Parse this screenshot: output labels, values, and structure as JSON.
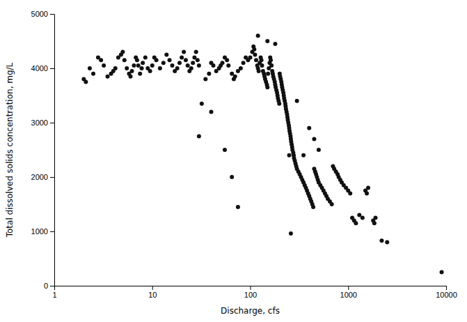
{
  "chart_data": {
    "type": "scatter",
    "xlabel": "Discharge, cfs",
    "ylabel": "Total dissolved solids concentration, mg/L",
    "log": "x",
    "xlim": [
      1,
      10000
    ],
    "xticks": [
      1,
      10,
      100,
      1000,
      10000
    ],
    "ylim": [
      0,
      5000
    ],
    "yticks": [
      0,
      1000,
      2000,
      3000,
      4000,
      5000
    ],
    "grid": false,
    "color": "#111111",
    "x": [
      2.0,
      2.1,
      2.3,
      2.5,
      2.8,
      3.0,
      3.2,
      3.5,
      3.8,
      4.0,
      4.2,
      4.5,
      4.8,
      5.0,
      5.2,
      5.5,
      5.8,
      6.0,
      6.2,
      6.5,
      6.8,
      7.0,
      7.2,
      7.5,
      7.8,
      8.0,
      8.5,
      9.0,
      9.5,
      10.0,
      10.5,
      11.0,
      12.0,
      13.0,
      14.0,
      15.0,
      16.0,
      17.0,
      18.0,
      19.0,
      20.0,
      21.0,
      22.0,
      23.0,
      24.0,
      25.0,
      26.0,
      27.0,
      28.0,
      29.0,
      30.0,
      32.0,
      35.0,
      38.0,
      40.0,
      42.0,
      45.0,
      48.0,
      50.0,
      52.0,
      55.0,
      58.0,
      60.0,
      65.0,
      68.0,
      70.0,
      75.0,
      80.0,
      85.0,
      90.0,
      95.0,
      100.0,
      105.0,
      108.0,
      110.0,
      112.0,
      115.0,
      118.0,
      120.0,
      122.0,
      125.0,
      128.0,
      130.0,
      132.0,
      135.0,
      138.0,
      140.0,
      142.0,
      145.0,
      148.0,
      150.0,
      152.0,
      155.0,
      158.0,
      160.0,
      162.0,
      165.0,
      168.0,
      170.0,
      172.0,
      175.0,
      178.0,
      180.0,
      182.0,
      185.0,
      188.0,
      190.0,
      192.0,
      195.0,
      198.0,
      200.0,
      202.0,
      205.0,
      208.0,
      210.0,
      212.0,
      215.0,
      218.0,
      220.0,
      222.0,
      225.0,
      228.0,
      230.0,
      232.0,
      235.0,
      238.0,
      240.0,
      242.0,
      245.0,
      248.0,
      250.0,
      252.0,
      255.0,
      258.0,
      260.0,
      262.0,
      265.0,
      268.0,
      270.0,
      275.0,
      278.0,
      280.0,
      285.0,
      290.0,
      295.0,
      300.0,
      310.0,
      320.0,
      330.0,
      340.0,
      350.0,
      360.0,
      370.0,
      380.0,
      390.0,
      400.0,
      410.0,
      420.0,
      430.0,
      440.0,
      450.0,
      460.0,
      470.0,
      480.0,
      490.0,
      500.0,
      520.0,
      540.0,
      560.0,
      580.0,
      600.0,
      620.0,
      650.0,
      680.0,
      700.0,
      720.0,
      750.0,
      780.0,
      800.0,
      830.0,
      860.0,
      900.0,
      950.0,
      1000.0,
      1050.0,
      1100.0,
      1150.0,
      1200.0,
      1300.0,
      1400.0,
      1500.0,
      1550.0,
      1600.0,
      1800.0,
      1850.0,
      1900.0,
      2200.0,
      2500.0,
      9000.0,
      30.0,
      40.0,
      55.0,
      65.0,
      75.0,
      120.0,
      150.0,
      180.0,
      250.0,
      260.0,
      300.0,
      350.0,
      400.0,
      450.0,
      500.0
    ],
    "values": [
      3800,
      3750,
      4000,
      3900,
      4200,
      4150,
      4050,
      3850,
      3900,
      3950,
      4000,
      4200,
      4250,
      4300,
      4150,
      4000,
      3900,
      3850,
      3950,
      4050,
      4200,
      4150,
      4050,
      3900,
      4000,
      4100,
      4200,
      4000,
      3950,
      4050,
      4200,
      4150,
      4000,
      4100,
      4250,
      4150,
      4050,
      3950,
      4000,
      4100,
      4200,
      4300,
      4150,
      4050,
      3950,
      4000,
      4100,
      4200,
      4300,
      4150,
      4050,
      3350,
      3800,
      3900,
      4100,
      4050,
      3950,
      4000,
      4050,
      4100,
      4200,
      4150,
      4050,
      3900,
      3800,
      3850,
      3950,
      4000,
      4100,
      4200,
      4150,
      4200,
      4300,
      4400,
      4350,
      4250,
      4150,
      4050,
      4000,
      3950,
      4100,
      4200,
      4150,
      4050,
      3950,
      3900,
      3850,
      3800,
      3750,
      3700,
      3650,
      3900,
      4000,
      4100,
      4200,
      4150,
      4050,
      3950,
      3900,
      3850,
      3800,
      3750,
      3700,
      3650,
      3600,
      3550,
      3500,
      3450,
      3400,
      3350,
      3900,
      3850,
      3800,
      3750,
      3700,
      3650,
      3600,
      3550,
      3500,
      3450,
      3400,
      3350,
      3300,
      3250,
      3200,
      3150,
      3100,
      3050,
      3000,
      2950,
      2900,
      2850,
      2800,
      2750,
      2700,
      2650,
      2600,
      2550,
      2500,
      2450,
      2400,
      2350,
      2300,
      2250,
      2200,
      2150,
      2100,
      2050,
      2000,
      1950,
      1900,
      1850,
      1800,
      1750,
      1700,
      1650,
      1600,
      1550,
      1500,
      1450,
      2150,
      2100,
      2050,
      2000,
      1950,
      1900,
      1850,
      1800,
      1750,
      1700,
      1650,
      1600,
      1550,
      1500,
      2200,
      2150,
      2100,
      2050,
      2000,
      1950,
      1900,
      1850,
      1800,
      1750,
      1700,
      1250,
      1200,
      1150,
      1300,
      1250,
      1750,
      1700,
      1800,
      1200,
      1150,
      1250,
      830,
      800,
      250,
      2750,
      3200,
      2500,
      2000,
      1450,
      4600,
      4500,
      4450,
      2400,
      960,
      3400,
      2400,
      2900,
      2700,
      2500
    ]
  }
}
